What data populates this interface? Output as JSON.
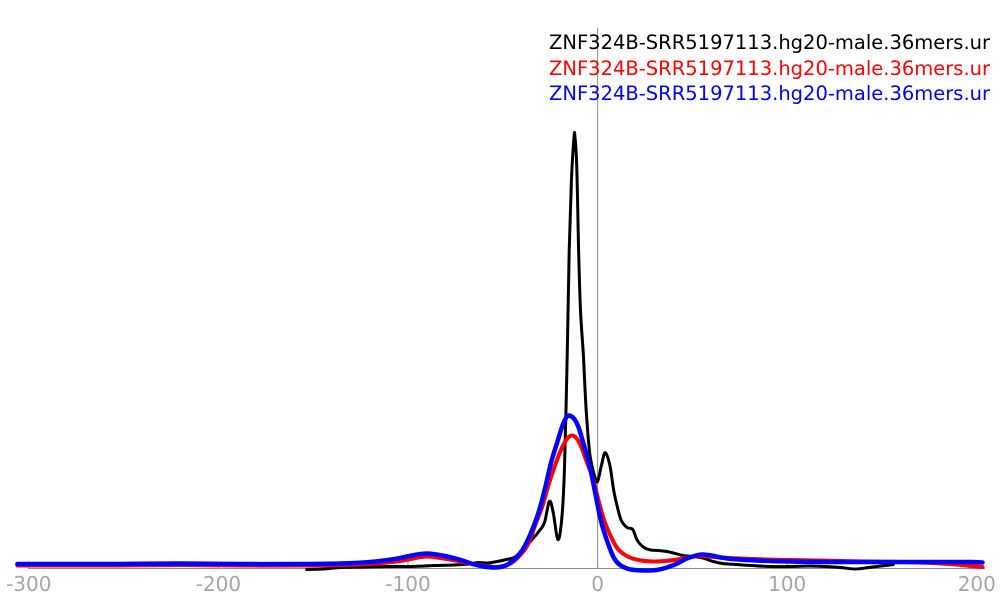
{
  "chart_data": {
    "type": "line",
    "title": "",
    "xlabel": "",
    "ylabel": "",
    "grid": "off",
    "legend_position": "top-right",
    "x_ticks": [
      -300,
      -200,
      -100,
      0,
      100,
      200
    ],
    "xlim": [
      -306,
      204
    ],
    "ylim": [
      -5,
      445
    ],
    "y_units": "arbitrary density (no y axis shown)",
    "zero_reference_line_x": 0,
    "axis_color": "#8c8c8c",
    "tick_label_color": "#a6a6a6",
    "background_color": "#ffffff",
    "series": [
      {
        "name": "series-black",
        "label": "ZNF324B-SRR5197113.hg20-male.36mers.ur",
        "color": "#000000",
        "points": [
          [
            -153.5,
            -1
          ],
          [
            -145,
            -0.5
          ],
          [
            -135,
            1
          ],
          [
            -122,
            1.5
          ],
          [
            -110,
            2
          ],
          [
            -98,
            2
          ],
          [
            -86,
            3
          ],
          [
            -76,
            3.5
          ],
          [
            -68,
            4.5
          ],
          [
            -63,
            6
          ],
          [
            -58,
            5.5
          ],
          [
            -53,
            7
          ],
          [
            -48,
            9
          ],
          [
            -44,
            11
          ],
          [
            -40,
            17
          ],
          [
            -35,
            28
          ],
          [
            -31,
            37
          ],
          [
            -28,
            46
          ],
          [
            -25.5,
            67
          ],
          [
            -23.5,
            57
          ],
          [
            -21,
            29
          ],
          [
            -19,
            48
          ],
          [
            -17.5,
            98
          ],
          [
            -16,
            218
          ],
          [
            -15,
            318
          ],
          [
            -13.8,
            388
          ],
          [
            -12.5,
            430
          ],
          [
            -12,
            433
          ],
          [
            -11,
            403
          ],
          [
            -10,
            318
          ],
          [
            -9,
            258
          ],
          [
            -7.5,
            213
          ],
          [
            -6,
            158
          ],
          [
            -4,
            113
          ],
          [
            -1.5,
            92
          ],
          [
            0,
            87
          ],
          [
            2,
            103
          ],
          [
            4,
            116
          ],
          [
            6.5,
            103
          ],
          [
            8.5,
            78
          ],
          [
            10.5,
            61
          ],
          [
            12.5,
            48
          ],
          [
            15.5,
            41
          ],
          [
            18.5,
            39
          ],
          [
            21,
            28
          ],
          [
            24.5,
            21
          ],
          [
            28,
            18.5
          ],
          [
            32,
            18
          ],
          [
            36.5,
            17
          ],
          [
            41,
            15
          ],
          [
            45,
            13
          ],
          [
            50,
            12
          ],
          [
            55.5,
            10.5
          ],
          [
            61,
            7
          ],
          [
            66,
            5
          ],
          [
            73,
            4
          ],
          [
            81,
            3
          ],
          [
            91,
            2
          ],
          [
            102,
            2
          ],
          [
            112,
            2.5
          ],
          [
            120,
            2
          ],
          [
            128,
            1
          ],
          [
            136,
            -0.5
          ],
          [
            143,
            1
          ],
          [
            149.5,
            2.5
          ],
          [
            156,
            4
          ]
        ]
      },
      {
        "name": "series-red",
        "label": "ZNF324B-SRR5197113.hg20-male.36mers.ur",
        "color": "#ff0000",
        "points": [
          [
            -306,
            3
          ],
          [
            -284,
            3
          ],
          [
            -252,
            3
          ],
          [
            -220,
            3.5
          ],
          [
            -189,
            3
          ],
          [
            -157,
            3
          ],
          [
            -136,
            3.5
          ],
          [
            -120,
            4.5
          ],
          [
            -104,
            7.5
          ],
          [
            -96,
            10.5
          ],
          [
            -90,
            12
          ],
          [
            -83,
            10.5
          ],
          [
            -75,
            8
          ],
          [
            -67,
            5
          ],
          [
            -59,
            2.5
          ],
          [
            -53,
            1.5
          ],
          [
            -47,
            4
          ],
          [
            -42,
            11
          ],
          [
            -37,
            23
          ],
          [
            -33,
            43
          ],
          [
            -29,
            63
          ],
          [
            -25.5,
            86
          ],
          [
            -21.5,
            108
          ],
          [
            -18.5,
            122
          ],
          [
            -16,
            130
          ],
          [
            -13.5,
            133
          ],
          [
            -11,
            130
          ],
          [
            -8.5,
            121
          ],
          [
            -6,
            108
          ],
          [
            -2.5,
            90
          ],
          [
            0.5,
            68
          ],
          [
            3.5,
            48
          ],
          [
            7,
            32
          ],
          [
            10.5,
            20
          ],
          [
            14.5,
            13.5
          ],
          [
            18.5,
            10
          ],
          [
            23,
            8
          ],
          [
            29,
            7
          ],
          [
            35.5,
            7.5
          ],
          [
            42,
            9
          ],
          [
            48,
            11
          ],
          [
            52.5,
            12.5
          ],
          [
            58,
            12
          ],
          [
            65,
            11
          ],
          [
            75,
            10
          ],
          [
            89,
            9
          ],
          [
            102,
            8.5
          ],
          [
            115,
            8
          ],
          [
            128,
            7.5
          ],
          [
            144,
            7
          ],
          [
            160,
            6.5
          ],
          [
            176,
            5.5
          ],
          [
            189,
            4
          ],
          [
            197,
            2.5
          ],
          [
            203,
            1.5
          ]
        ]
      },
      {
        "name": "series-blue",
        "label": "ZNF324B-SRR5197113.hg20-male.36mers.ur",
        "color": "#0000ff",
        "points": [
          [
            -306,
            4.5
          ],
          [
            -284,
            4.5
          ],
          [
            -252,
            4.5
          ],
          [
            -220,
            5
          ],
          [
            -189,
            4.5
          ],
          [
            -157,
            4.5
          ],
          [
            -136,
            5
          ],
          [
            -120,
            6.5
          ],
          [
            -107,
            9.5
          ],
          [
            -98,
            13
          ],
          [
            -90,
            15
          ],
          [
            -82,
            13
          ],
          [
            -73,
            9
          ],
          [
            -66,
            4.5
          ],
          [
            -60,
            2
          ],
          [
            -54,
            1
          ],
          [
            -48.5,
            3
          ],
          [
            -44,
            9
          ],
          [
            -39.5,
            19
          ],
          [
            -35.5,
            34
          ],
          [
            -31.5,
            54
          ],
          [
            -28,
            78
          ],
          [
            -24.5,
            106
          ],
          [
            -21,
            128
          ],
          [
            -18.5,
            143
          ],
          [
            -16.5,
            151
          ],
          [
            -15,
            153
          ],
          [
            -12.5,
            150
          ],
          [
            -10,
            141
          ],
          [
            -7.5,
            125
          ],
          [
            -4,
            101
          ],
          [
            -1,
            73
          ],
          [
            2,
            46
          ],
          [
            5.5,
            25
          ],
          [
            8.5,
            11
          ],
          [
            11.5,
            4
          ],
          [
            15.5,
            0
          ],
          [
            19.5,
            -1.5
          ],
          [
            25.5,
            -2
          ],
          [
            31,
            -1.5
          ],
          [
            36.5,
            1
          ],
          [
            42,
            5
          ],
          [
            46.5,
            9.5
          ],
          [
            51,
            12.5
          ],
          [
            55,
            14
          ],
          [
            60,
            13
          ],
          [
            65,
            11
          ],
          [
            71,
            9.5
          ],
          [
            84,
            8
          ],
          [
            102,
            7
          ],
          [
            123,
            6.5
          ],
          [
            144,
            6.5
          ],
          [
            165,
            6.5
          ],
          [
            187,
            6.5
          ],
          [
            197,
            6.5
          ],
          [
            203,
            6
          ]
        ]
      }
    ]
  }
}
